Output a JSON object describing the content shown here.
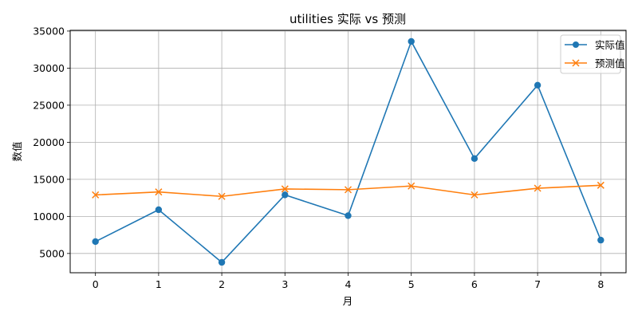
{
  "chart_data": {
    "type": "line",
    "title": "utilities 实际 vs 预测",
    "xlabel": "月",
    "ylabel": "数值",
    "x": [
      0,
      1,
      2,
      3,
      4,
      5,
      6,
      7,
      8
    ],
    "xlim": [
      -0.4,
      8.4
    ],
    "ylim": [
      2400,
      35100
    ],
    "xticks": [
      0,
      1,
      2,
      3,
      4,
      5,
      6,
      7,
      8
    ],
    "yticks": [
      5000,
      10000,
      15000,
      20000,
      25000,
      30000,
      35000
    ],
    "grid": true,
    "legend_position": "top-right",
    "series": [
      {
        "name": "实际值",
        "color": "#1f77b4",
        "marker": "circle",
        "values": [
          6600,
          10900,
          3800,
          12900,
          10100,
          33600,
          17800,
          27700,
          6800
        ]
      },
      {
        "name": "预测值",
        "color": "#ff7f0e",
        "marker": "x",
        "values": [
          12900,
          13300,
          12700,
          13700,
          13600,
          14100,
          12900,
          13800,
          14200
        ]
      }
    ]
  }
}
